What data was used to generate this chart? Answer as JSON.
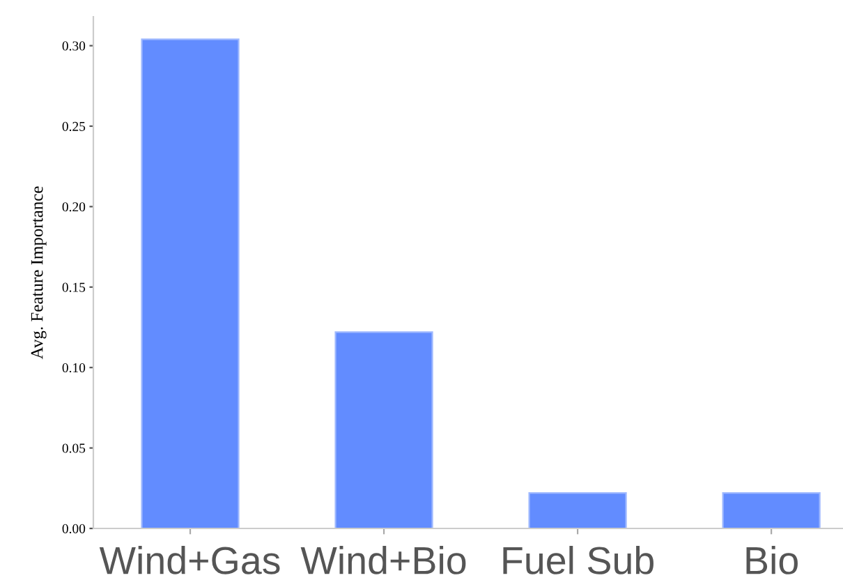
{
  "chart_data": {
    "type": "bar",
    "ylabel": "Avg. Feature Importance",
    "categories": [
      "Wind+Gas",
      "Wind+Bio",
      "Fuel Sub",
      "Bio"
    ],
    "values": [
      0.304,
      0.122,
      0.022,
      0.022
    ],
    "color": "#628cff",
    "ylim": [
      0,
      0.318
    ],
    "yticks": [
      {
        "value": 0,
        "label": "0.00"
      },
      {
        "value": 0.05,
        "label": "0.05"
      },
      {
        "value": 0.1,
        "label": "0.10"
      },
      {
        "value": 0.15,
        "label": "0.15"
      },
      {
        "value": 0.2,
        "label": "0.20"
      },
      {
        "value": 0.25,
        "label": "0.25"
      },
      {
        "value": 0.3,
        "label": "0.30"
      }
    ],
    "grid": false,
    "legend": false
  }
}
